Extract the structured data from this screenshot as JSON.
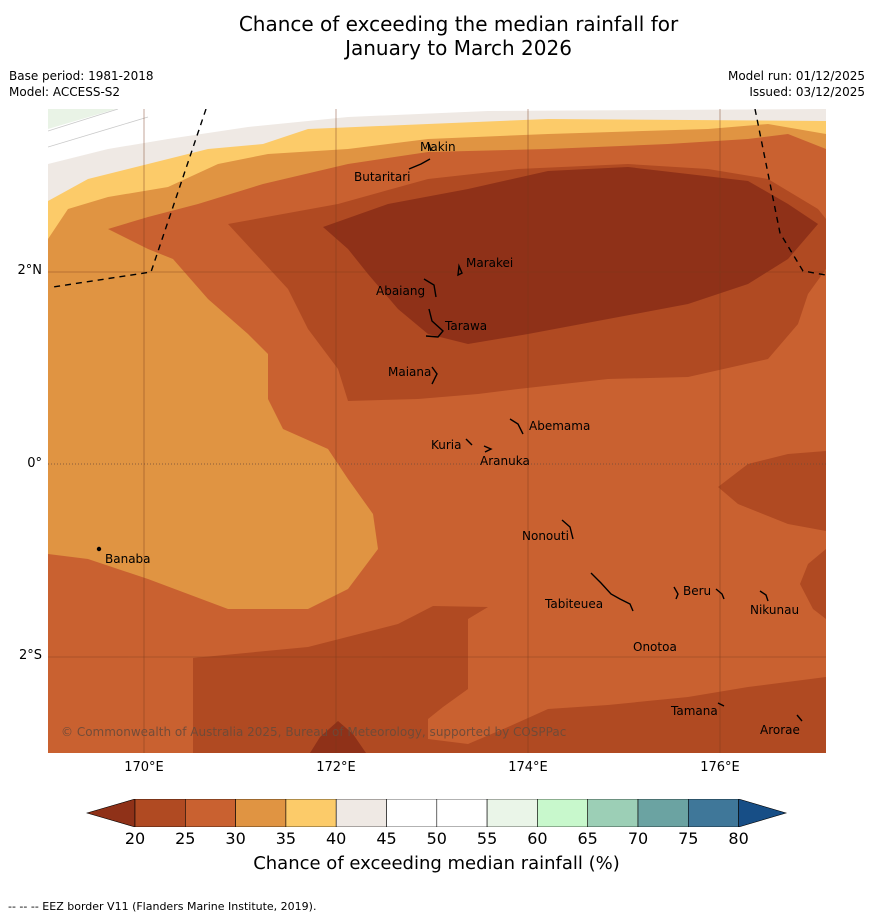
{
  "title_line1": "Chance of exceeding the median rainfall for",
  "title_line2": "January to March 2026",
  "meta_left": [
    "Base period: 1981-2018",
    "Model: ACCESS-S2"
  ],
  "meta_right": [
    "Model run: 01/12/2025",
    "Issued: 03/12/2025"
  ],
  "lat_labels": [
    "2°N",
    "0°",
    "2°S"
  ],
  "lon_labels": [
    "170°E",
    "172°E",
    "174°E",
    "176°E"
  ],
  "places": [
    "Makin",
    "Butaritari",
    "Marakei",
    "Abaiang",
    "Tarawa",
    "Maiana",
    "Abemama",
    "Kuria",
    "Aranuka",
    "Banaba",
    "Nonouti",
    "Tabiteuea",
    "Beru",
    "Nikunau",
    "Onotoa",
    "Tamana",
    "Arorae"
  ],
  "copyright": "© Commonwealth of Australia 2025, Bureau of Meteorology, supported by COSPPac",
  "colorbar": {
    "ticks": [
      "20",
      "25",
      "30",
      "35",
      "40",
      "45",
      "50",
      "55",
      "60",
      "65",
      "70",
      "75",
      "80"
    ],
    "colors": [
      "#8f3118",
      "#b04a22",
      "#c96130",
      "#e09442",
      "#fccb69",
      "#efe9e4",
      "#ffffff",
      "#ffffff",
      "#eaf5e8",
      "#c8f8cc",
      "#9ccfb6",
      "#6ba3a2",
      "#3f7799",
      "#174e86"
    ],
    "label": "Chance of exceeding median rainfall (%)"
  },
  "eez_note": "--  --  -- EEZ border V11 (Flanders Marine Institute, 2019)."
}
